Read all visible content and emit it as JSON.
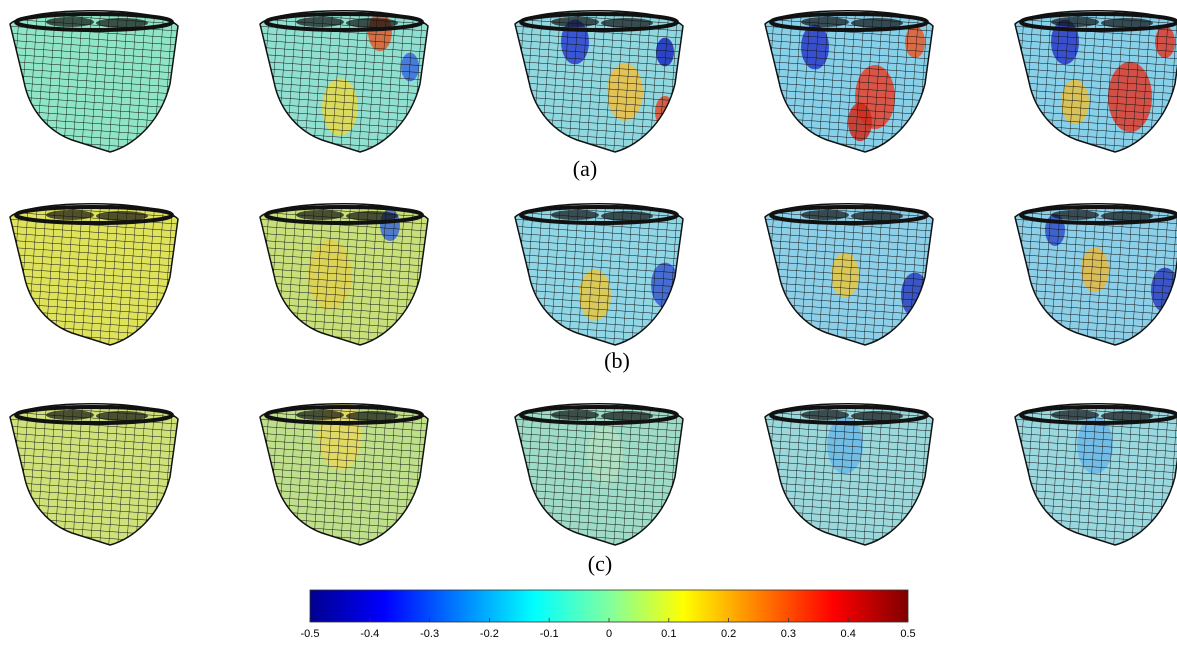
{
  "panel_labels": [
    "(a)",
    "(b)",
    "(c)"
  ],
  "colorbar": {
    "clim": [
      -0.5,
      0.5
    ],
    "ticks": [
      -0.5,
      -0.4,
      -0.3,
      -0.2,
      -0.1,
      0,
      0.1,
      0.2,
      0.3,
      0.4,
      0.5
    ]
  }
}
